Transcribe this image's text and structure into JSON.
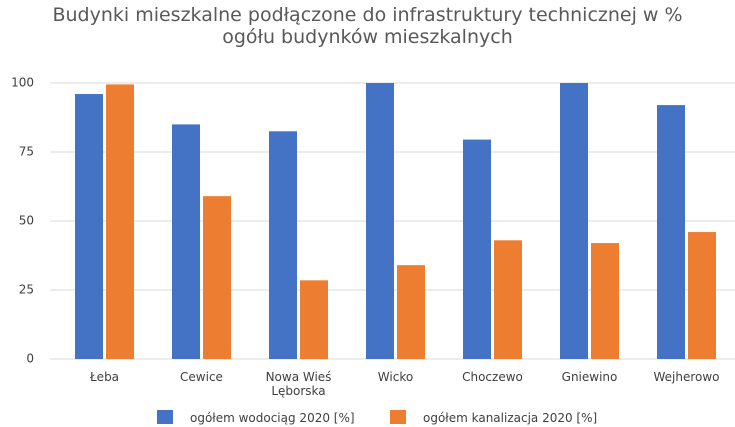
{
  "chart_data": {
    "type": "bar",
    "title": "Budynki mieszkalne podłączone do infrastruktury technicznej w % ogółu budynków mieszkalnych",
    "categories": [
      "Łeba",
      "Cewice",
      "Nowa Wieś Lęborska",
      "Wicko",
      "Choczewo",
      "Gniewino",
      "Wejherowo"
    ],
    "series": [
      {
        "name": "ogółem wodociąg 2020 [%]",
        "color": "#4472c4",
        "values": [
          96,
          85,
          82.5,
          100,
          79.5,
          100,
          92
        ]
      },
      {
        "name": "ogółem kanalizacja 2020 [%]",
        "color": "#ed7d31",
        "values": [
          99.5,
          59,
          28.5,
          34,
          43,
          42,
          46
        ]
      }
    ],
    "ylim": [
      0,
      100
    ],
    "yticks": [
      0,
      25,
      50,
      75,
      100
    ],
    "grid": true,
    "legend": "bottom"
  }
}
